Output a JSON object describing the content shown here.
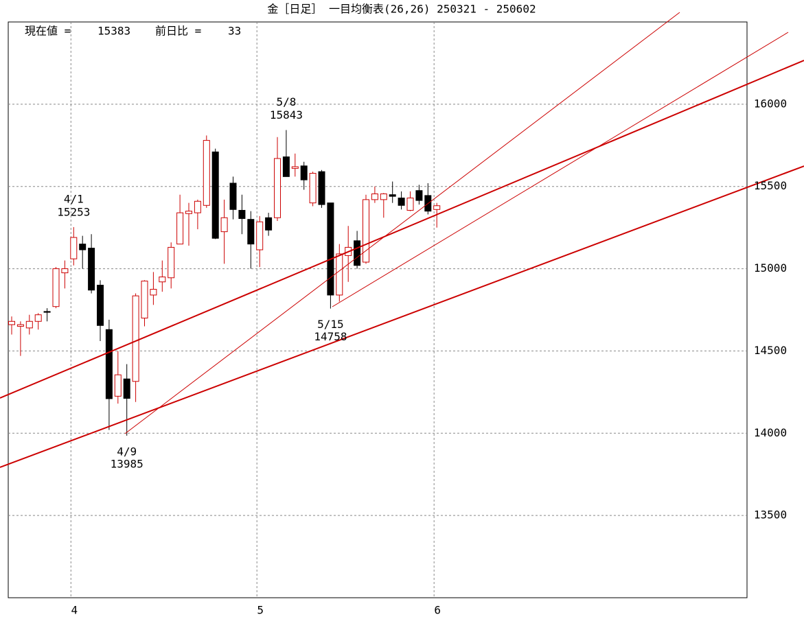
{
  "chart_data": {
    "type": "candlestick",
    "title": "金［日足］ 一目均衡表(26,26)  250321 - 250602",
    "current_label": "現在値 =",
    "current": 15383,
    "change_label": "前日比 =",
    "change": 33,
    "categories": [
      null,
      null,
      null,
      null,
      null,
      null,
      null,
      "4",
      null,
      null,
      null,
      null,
      null,
      null,
      null,
      null,
      null,
      null,
      null,
      null,
      null,
      null,
      null,
      null,
      null,
      null,
      null,
      null,
      "5",
      null,
      null,
      null,
      null,
      null,
      null,
      null,
      null,
      null,
      null,
      null,
      null,
      null,
      null,
      null,
      null,
      null,
      null,
      null,
      "6"
    ],
    "open": [
      14660,
      14650,
      14640,
      14680,
      14740,
      14770,
      14975,
      15060,
      15150,
      15125,
      14900,
      14630,
      14225,
      14330,
      14315,
      14700,
      14840,
      14920,
      14945,
      15150,
      15335,
      15340,
      15385,
      15710,
      15225,
      15520,
      15355,
      15300,
      15115,
      15310,
      15310,
      15680,
      15610,
      15625,
      15400,
      15590,
      15400,
      14840,
      15080,
      15170,
      15040,
      15420,
      15420,
      15450,
      15430,
      15355,
      15475,
      15445,
      15360
    ],
    "high": [
      14710,
      14680,
      14720,
      14730,
      14760,
      15010,
      15050,
      15253,
      15200,
      15210,
      14930,
      14690,
      14500,
      14420,
      14850,
      14930,
      14980,
      15050,
      15160,
      15450,
      15400,
      15420,
      15810,
      15730,
      15420,
      15560,
      15450,
      15350,
      15320,
      15340,
      15800,
      15843,
      15700,
      15650,
      15590,
      15600,
      15400,
      15150,
      15260,
      15230,
      15450,
      15500,
      15460,
      15530,
      15470,
      15470,
      15510,
      15520,
      15400
    ],
    "low": [
      14600,
      14470,
      14600,
      14630,
      14680,
      14760,
      14880,
      15020,
      15000,
      14850,
      14560,
      14020,
      14180,
      13985,
      14190,
      14650,
      14780,
      14860,
      14880,
      15150,
      15140,
      15240,
      15370,
      15180,
      15030,
      15300,
      15210,
      15000,
      15010,
      15200,
      15290,
      15570,
      15560,
      15480,
      15380,
      15370,
      14758,
      14800,
      14920,
      15000,
      15030,
      15400,
      15310,
      15400,
      15360,
      15350,
      15390,
      15330,
      15250
    ],
    "close": [
      14680,
      14660,
      14680,
      14720,
      14735,
      15000,
      15000,
      15190,
      15115,
      14870,
      14655,
      14210,
      14355,
      14212,
      14835,
      14925,
      14875,
      14950,
      15130,
      15340,
      15350,
      15410,
      15780,
      15185,
      15310,
      15360,
      15305,
      15150,
      15285,
      15235,
      15670,
      15560,
      15620,
      15540,
      15580,
      15390,
      14840,
      15090,
      15130,
      15020,
      15420,
      15455,
      15455,
      15440,
      15385,
      15430,
      15415,
      15350,
      15383
    ],
    "up_color": "#cc0000",
    "down_color": "#000000",
    "annotations": [
      {
        "label": "4/1",
        "value": 15253,
        "at": "high"
      },
      {
        "label": "4/9",
        "value": 13985,
        "at": "low"
      },
      {
        "label": "5/8",
        "value": 15843,
        "at": "high"
      },
      {
        "label": "5/15",
        "value": 14758,
        "at": "low"
      }
    ],
    "ylim": [
      13000,
      16500
    ],
    "yticks": [
      13500,
      14000,
      14500,
      15000,
      15500,
      16000
    ],
    "grid": true
  }
}
